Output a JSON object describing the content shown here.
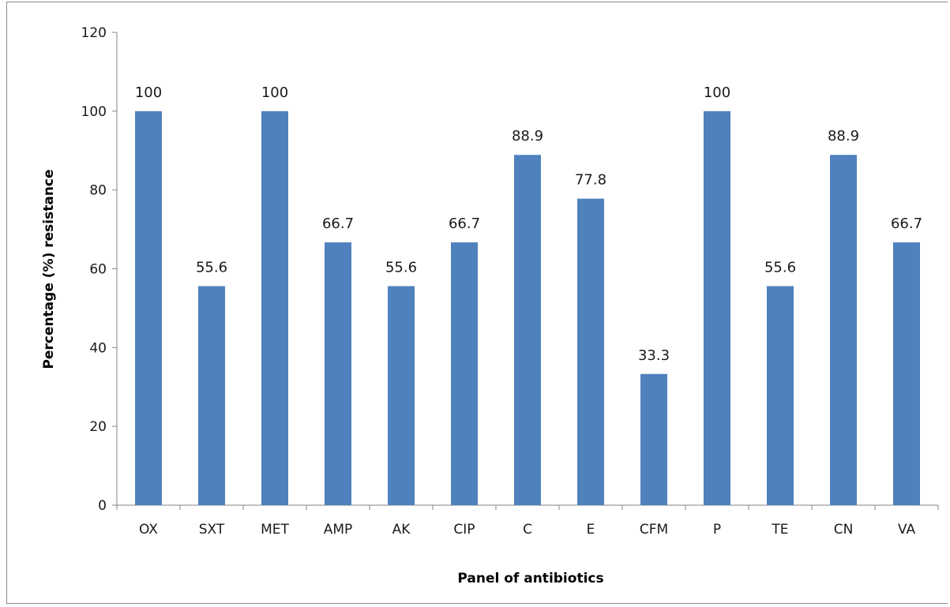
{
  "chart_data": {
    "type": "bar",
    "title": "",
    "xlabel": "Panel of antibiotics",
    "ylabel": "Percentage (%) resistance",
    "ylim": [
      0,
      120
    ],
    "yticks": [
      0,
      20,
      40,
      60,
      80,
      100,
      120
    ],
    "grid": false,
    "legend": "none",
    "bar_color": "#4f81bd",
    "categories": [
      "OX",
      "SXT",
      "MET",
      "AMP",
      "AK",
      "CIP",
      "C",
      "E",
      "CFM",
      "P",
      "TE",
      "CN",
      "VA"
    ],
    "values": [
      100,
      55.6,
      100,
      66.7,
      55.6,
      66.7,
      88.9,
      77.8,
      33.3,
      100,
      55.6,
      88.9,
      66.7
    ],
    "data_labels": [
      "100",
      "55.6",
      "100",
      "66.7",
      "55.6",
      "66.7",
      "88.9",
      "77.8",
      "33.3",
      "100",
      "55.6",
      "88.9",
      "66.7"
    ]
  }
}
